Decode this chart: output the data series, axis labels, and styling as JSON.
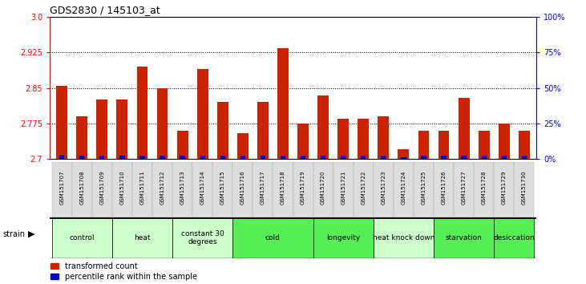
{
  "title": "GDS2830 / 145103_at",
  "samples": [
    "GSM151707",
    "GSM151708",
    "GSM151709",
    "GSM151710",
    "GSM151711",
    "GSM151712",
    "GSM151713",
    "GSM151714",
    "GSM151715",
    "GSM151716",
    "GSM151717",
    "GSM151718",
    "GSM151719",
    "GSM151720",
    "GSM151721",
    "GSM151722",
    "GSM151723",
    "GSM151724",
    "GSM151725",
    "GSM151726",
    "GSM151727",
    "GSM151728",
    "GSM151729",
    "GSM151730"
  ],
  "transformed_count": [
    2.855,
    2.79,
    2.825,
    2.825,
    2.895,
    2.85,
    2.76,
    2.89,
    2.82,
    2.755,
    2.82,
    2.935,
    2.775,
    2.835,
    2.785,
    2.785,
    2.79,
    2.72,
    2.76,
    2.76,
    2.83,
    2.76,
    2.775,
    2.76
  ],
  "percentile_rank": [
    15,
    12,
    14,
    14,
    13,
    14,
    14,
    14,
    14,
    14,
    13,
    14,
    14,
    13,
    13,
    14,
    13,
    8,
    12,
    13,
    14,
    14,
    12,
    13
  ],
  "groups": [
    {
      "name": "control",
      "start": 0,
      "end": 2,
      "color": "#ccffcc"
    },
    {
      "name": "heat",
      "start": 3,
      "end": 5,
      "color": "#ccffcc"
    },
    {
      "name": "constant 30\ndegrees",
      "start": 6,
      "end": 8,
      "color": "#ccffcc"
    },
    {
      "name": "cold",
      "start": 9,
      "end": 12,
      "color": "#55ee55"
    },
    {
      "name": "longevity",
      "start": 13,
      "end": 15,
      "color": "#55ee55"
    },
    {
      "name": "heat knock down",
      "start": 16,
      "end": 18,
      "color": "#ccffcc"
    },
    {
      "name": "starvation",
      "start": 19,
      "end": 21,
      "color": "#55ee55"
    },
    {
      "name": "desiccation",
      "start": 22,
      "end": 23,
      "color": "#55ee55"
    }
  ],
  "ylim": [
    2.7,
    3.0
  ],
  "yticks_left": [
    2.7,
    2.775,
    2.85,
    2.925,
    3.0
  ],
  "yticks_right": [
    0,
    25,
    50,
    75,
    100
  ],
  "bar_color": "#cc2200",
  "percentile_color": "#0000cc",
  "bar_width": 0.55,
  "percentile_bar_width": 0.25
}
